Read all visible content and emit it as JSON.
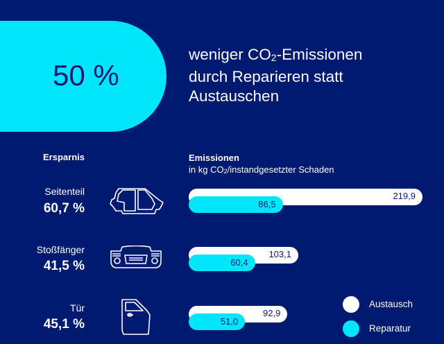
{
  "colors": {
    "background": "#001a70",
    "accent_cyan": "#00e5fa",
    "text_dark": "#0a1a6e",
    "white": "#ffffff"
  },
  "hero": {
    "value": "50 %",
    "headline_pre": "weniger CO",
    "headline_sub": "2",
    "headline_post": "-Emissionen",
    "headline_line2": "durch Reparieren statt",
    "headline_line3": "Austauschen"
  },
  "headers": {
    "savings": "Ersparnis",
    "emissions_title": "Emissionen",
    "emissions_unit_pre": "in kg CO",
    "emissions_unit_sub": "2",
    "emissions_unit_post": "/instandgesetzter Schaden"
  },
  "rows": [
    {
      "label": "Seitenteil",
      "savings": "60,7 %",
      "icon": "car-side-panel-icon",
      "replace_label": "219,9",
      "repair_label": "86,5"
    },
    {
      "label": "Stoßfänger",
      "savings": "41,5 %",
      "icon": "car-bumper-icon",
      "replace_label": "103,1",
      "repair_label": "60,4"
    },
    {
      "label": "Tür",
      "savings": "45,1 %",
      "icon": "car-door-icon",
      "replace_label": "92,9",
      "repair_label": "51,0"
    }
  ],
  "legend": {
    "replace": "Austausch",
    "repair": "Reparatur"
  },
  "chart_data": {
    "type": "bar",
    "orientation": "horizontal",
    "title": "Emissionen",
    "subtitle": "in kg CO2/instandgesetzter Schaden",
    "categories": [
      "Seitenteil",
      "Stoßfänger",
      "Tür"
    ],
    "series": [
      {
        "name": "Austausch",
        "color": "#ffffff",
        "values": [
          219.9,
          103.1,
          92.9
        ]
      },
      {
        "name": "Reparatur",
        "color": "#00e5fa",
        "values": [
          86.5,
          60.4,
          51.0
        ]
      }
    ],
    "savings_percent": [
      60.7,
      41.5,
      45.1
    ],
    "xlim": [
      0,
      219.9
    ],
    "grid": false,
    "legend_position": "bottom-right"
  }
}
